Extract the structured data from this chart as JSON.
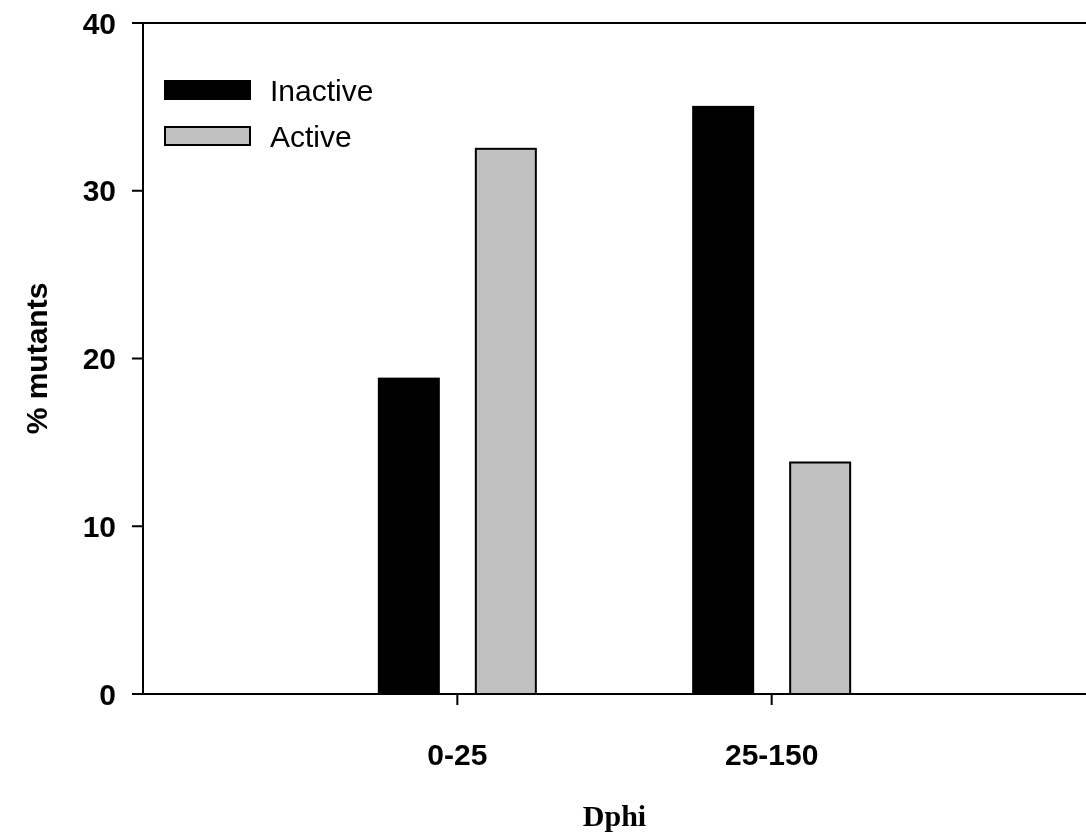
{
  "chart_data": {
    "type": "bar",
    "xlabel": "Dphi",
    "ylabel": "% mutants",
    "categories": [
      "0-25",
      "25-150"
    ],
    "series": [
      {
        "name": "Inactive",
        "color": "#000000",
        "values": [
          18.8,
          35.0
        ]
      },
      {
        "name": "Active",
        "color": "#c0c0c0",
        "values": [
          32.5,
          13.8
        ]
      }
    ],
    "ylim": [
      0,
      40
    ],
    "yticks": [
      0,
      10,
      20,
      30,
      40
    ],
    "grid": false,
    "legend": "top left"
  }
}
